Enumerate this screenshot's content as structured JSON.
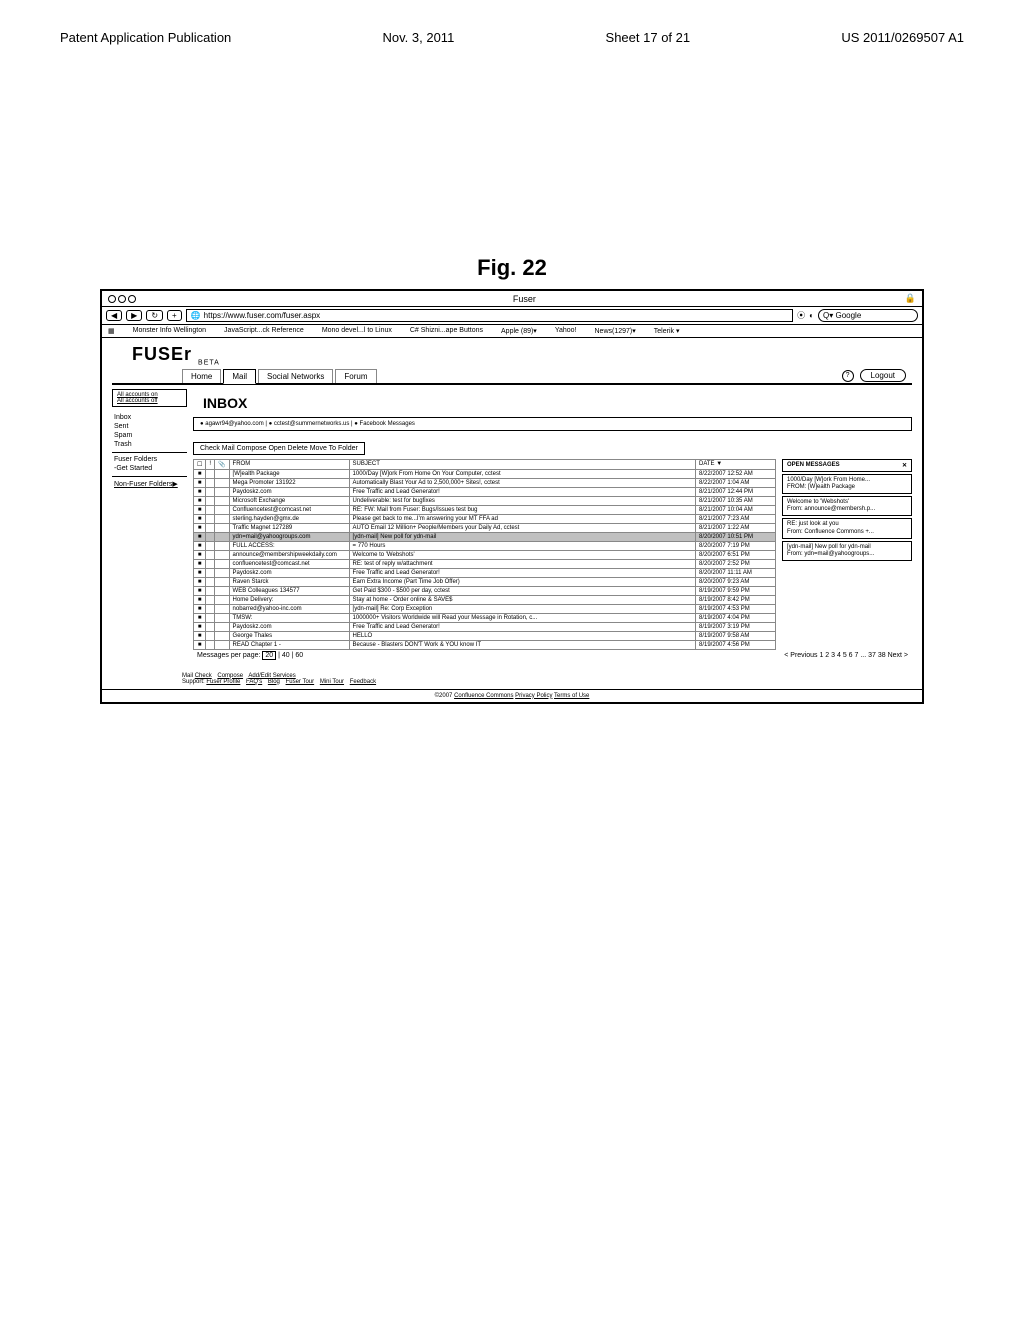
{
  "header": {
    "left": "Patent Application Publication",
    "date": "Nov. 3, 2011",
    "sheet": "Sheet 17 of 21",
    "pubno": "US 2011/0269507 A1"
  },
  "figure": {
    "title": "Fig. 22"
  },
  "browser": {
    "windowTitle": "Fuser",
    "url": "https://www.fuser.com/fuser.aspx",
    "search": {
      "placeholder": "Google"
    },
    "bookmarks": [
      "Monster Info   Wellington",
      "JavaScript...ck Reference",
      "Mono devel...l to Linux",
      "C# Shizni...ape Buttons",
      "Apple (89)▾",
      "Yahoo!",
      "News(1297)▾",
      "Telerik ▾"
    ]
  },
  "app": {
    "logo": "FUSEr",
    "logoSub": "BETA",
    "tabs": [
      "Home",
      "Mail",
      "Social Networks",
      "Forum"
    ],
    "logout": "Logout",
    "inboxTitle": "INBOX",
    "accountsOn": "All accounts on",
    "accountsOff": "All accounts off",
    "accountFilter": "● agawr94@yahoo.com | ● cctest@summernetworks.us | ● Facebook Messages",
    "toolbar": "Check Mail   Compose   Open   Delete   Move To Folder",
    "folders": [
      "Inbox",
      "Sent",
      "Spam",
      "Trash"
    ],
    "fuserFoldersTitle": "Fuser Folders",
    "fuserFolders": [
      "-Get Started"
    ],
    "nonFuserTitle": "Non-Fuser Folders▶",
    "columns": {
      "from": "FROM",
      "subject": "SUBJECT",
      "date": "DATE ▼"
    },
    "rows": [
      {
        "from": "[W]ealth Package",
        "subject": "1000/Day [W]ork From Home On Your Computer, cctest",
        "date": "8/22/2007 12:52 AM"
      },
      {
        "from": "Mega Promoter 131922",
        "subject": "Automatically Blast Your Ad to 2,500,000+ Sites!, cctest",
        "date": "8/22/2007 1:04 AM"
      },
      {
        "from": "Paydoskz.com",
        "subject": "Free Traffic and Lead Generator!",
        "date": "8/21/2007 12:44 PM"
      },
      {
        "from": "Microsoft Exchange",
        "subject": "Undeliverable: test for bugfixes",
        "date": "8/21/2007 10:35 AM"
      },
      {
        "from": "Confluencetest@comcast.net",
        "subject": "RE: FW: Mail from Fuser: Bugs/Issues test bug",
        "date": "8/21/2007 10:04 AM"
      },
      {
        "from": "sterling.hayden@gmx.de",
        "subject": "Please get back to me...I'm answering your MT FFA ad",
        "date": "8/21/2007 7:23 AM"
      },
      {
        "from": "Traffic Magnet 127289",
        "subject": "AUTO Email 12 Million+ People/Members your Daily Ad, cctest",
        "date": "8/21/2007 1:22 AM"
      },
      {
        "from": "ydn=mail@yahoogroups.com",
        "subject": "[ydn-mail] New poll for ydn-mail",
        "date": "8/20/2007 10:51 PM",
        "selected": true
      },
      {
        "from": "FULL ACCESS:",
        "subject": "= 770 Hours",
        "date": "8/20/2007 7:19 PM"
      },
      {
        "from": "announce@membershipweekdaily.com",
        "subject": "Welcome to 'Webshots'",
        "date": "8/20/2007 6:51 PM"
      },
      {
        "from": "confluencetest@comcast.net",
        "subject": "RE: test of reply w/attachment",
        "date": "8/20/2007 2:52 PM"
      },
      {
        "from": "Paydoskz.com",
        "subject": "Free Traffic and Lead Generator!",
        "date": "8/20/2007 11:11 AM"
      },
      {
        "from": "Raven Starck",
        "subject": "Earn Extra Income (Part Time Job Offer)",
        "date": "8/20/2007 9:23 AM"
      },
      {
        "from": "WEB Colleagues 134577",
        "subject": "Get Paid $300 - $500 per day, cctest",
        "date": "8/19/2007 9:59 PM"
      },
      {
        "from": "Home Delivery:",
        "subject": "Stay at home - Order online & SAVE$",
        "date": "8/19/2007 8:42 PM"
      },
      {
        "from": "nobarred@yahoo-inc.com",
        "subject": "[ydn-mail] Re: Corp Exception",
        "date": "8/19/2007 4:53 PM"
      },
      {
        "from": "TMSW:",
        "subject": "1000000+ Visitors Worldwide will Read your Message in Rotation, c...",
        "date": "8/19/2007 4:04 PM"
      },
      {
        "from": "Paydoskz.com",
        "subject": "Free Traffic and Lead Generator!",
        "date": "8/19/2007 3:19 PM"
      },
      {
        "from": "George Thales",
        "subject": "HELLO",
        "date": "8/19/2007 9:58 AM"
      },
      {
        "from": "READ Chapter 1 -",
        "subject": "Because - Blasters DON'T Work & YOU know IT",
        "date": "8/19/2007 4:56 PM"
      }
    ],
    "perPage": "Messages per page: ",
    "perPageOpts": [
      "20",
      "40",
      "60"
    ],
    "pager": "< Previous  1  2 3 4 5 6 7 ... 37  38  Next >",
    "openMessages": {
      "title": "OPEN MESSAGES",
      "cards": [
        {
          "l1": "1000/Day [W]ork From Home...",
          "l2": "FROM: [W]ealth Package"
        },
        {
          "l1": "Welcome to 'Webshots'",
          "l2": "From: announce@membersh.p..."
        },
        {
          "l1": "RE: just look at you",
          "l2": "From: Confluence Commons +..."
        },
        {
          "l1": "[ydn-mail] New poll for ydn-mail",
          "l2": "From: ydn=mail@yahoogroups..."
        }
      ]
    },
    "footerLabel1": "Mail",
    "footerLabel2": "Support:",
    "footerLinks1": [
      "Check",
      "Compose",
      "Add/Edit Services"
    ],
    "footerLinks2": [
      "Fuser Profile",
      "FAQ's",
      "Blog",
      "Fuser Tour",
      "Mini Tour",
      "Feedback"
    ],
    "copyright": "©2007",
    "copyrightLinks": [
      "Confluence Commons",
      "Privacy Policy",
      "Terms of Use"
    ]
  }
}
